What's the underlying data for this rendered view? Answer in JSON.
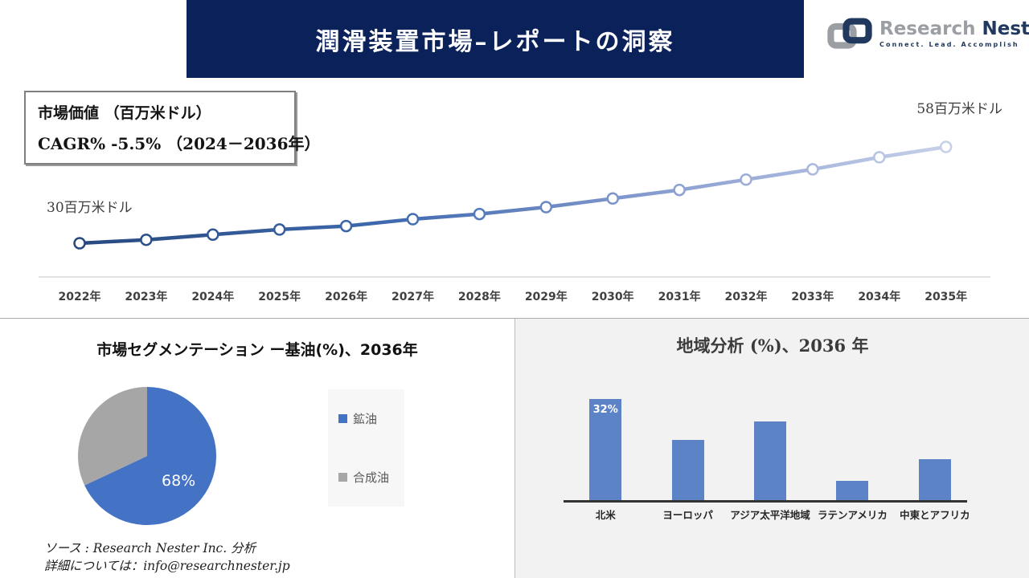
{
  "header": {
    "title": "潤滑装置市場–レポートの洞察"
  },
  "logo": {
    "brand_primary": "Research",
    "brand_secondary": "Nester",
    "tagline": "Connect. Lead. Accomplish"
  },
  "info_box": {
    "line1": "市場価値 （百万米ドル）",
    "line2": "CAGR% -5.5% （2024－2036年）"
  },
  "footer": {
    "source": "ソース : Research Nester Inc. 分析",
    "contact": "詳細については：info@researchnester.jp"
  },
  "colors": {
    "banner_navy": "#0A2159",
    "logo_gray": "#9B9FA4",
    "logo_navy": "#21395E",
    "panel_gray": "#F2F2F2",
    "axis_light": "#D9D9D9"
  },
  "chart_data": [
    {
      "type": "line",
      "name": "market-value-trend",
      "x": [
        "2022年",
        "2023年",
        "2024年",
        "2025年",
        "2026年",
        "2027年",
        "2028年",
        "2029年",
        "2030年",
        "2031年",
        "2032年",
        "2033年",
        "2034年",
        "2035年"
      ],
      "values": [
        30,
        31,
        32.5,
        34,
        35,
        37,
        38.5,
        40.5,
        43,
        45.5,
        48.5,
        51.5,
        55,
        58
      ],
      "unit": "百万米ドル",
      "start_label": "30百万米ドル",
      "end_label": "58百万米ドル",
      "cagr_note": "CAGR% -5.5% （2024－2036年）",
      "gradient": [
        "#27497F",
        "#3E69AE",
        "#8FA2D3",
        "#C7D0E9"
      ],
      "marker": "open-circle",
      "grid": false,
      "legend": "none",
      "ylim": [
        18,
        62
      ]
    },
    {
      "type": "pie",
      "name": "base-oil-segmentation",
      "title": "市場セグメンテーション ー基油(%)、2036年",
      "slices": [
        {
          "label": "鉱油",
          "value": 68,
          "color": "#4472C4",
          "data_label": "68%"
        },
        {
          "label": "合成油",
          "value": 32,
          "color": "#A6A6A6",
          "data_label": ""
        }
      ],
      "legend_position": "right"
    },
    {
      "type": "bar",
      "name": "regional-analysis",
      "title": "地域分析 (%)、2036 年",
      "categories": [
        "北米",
        "ヨーロッパ",
        "アジア太平洋地域",
        "ラテンアメリカ",
        "中東とアフリカ"
      ],
      "values": [
        32,
        19,
        25,
        6,
        13
      ],
      "data_labels": [
        "32%",
        "",
        "",
        "",
        ""
      ],
      "bar_color": "#5B83C6",
      "ylim": [
        0,
        34
      ],
      "grid": false,
      "legend": "none"
    }
  ]
}
